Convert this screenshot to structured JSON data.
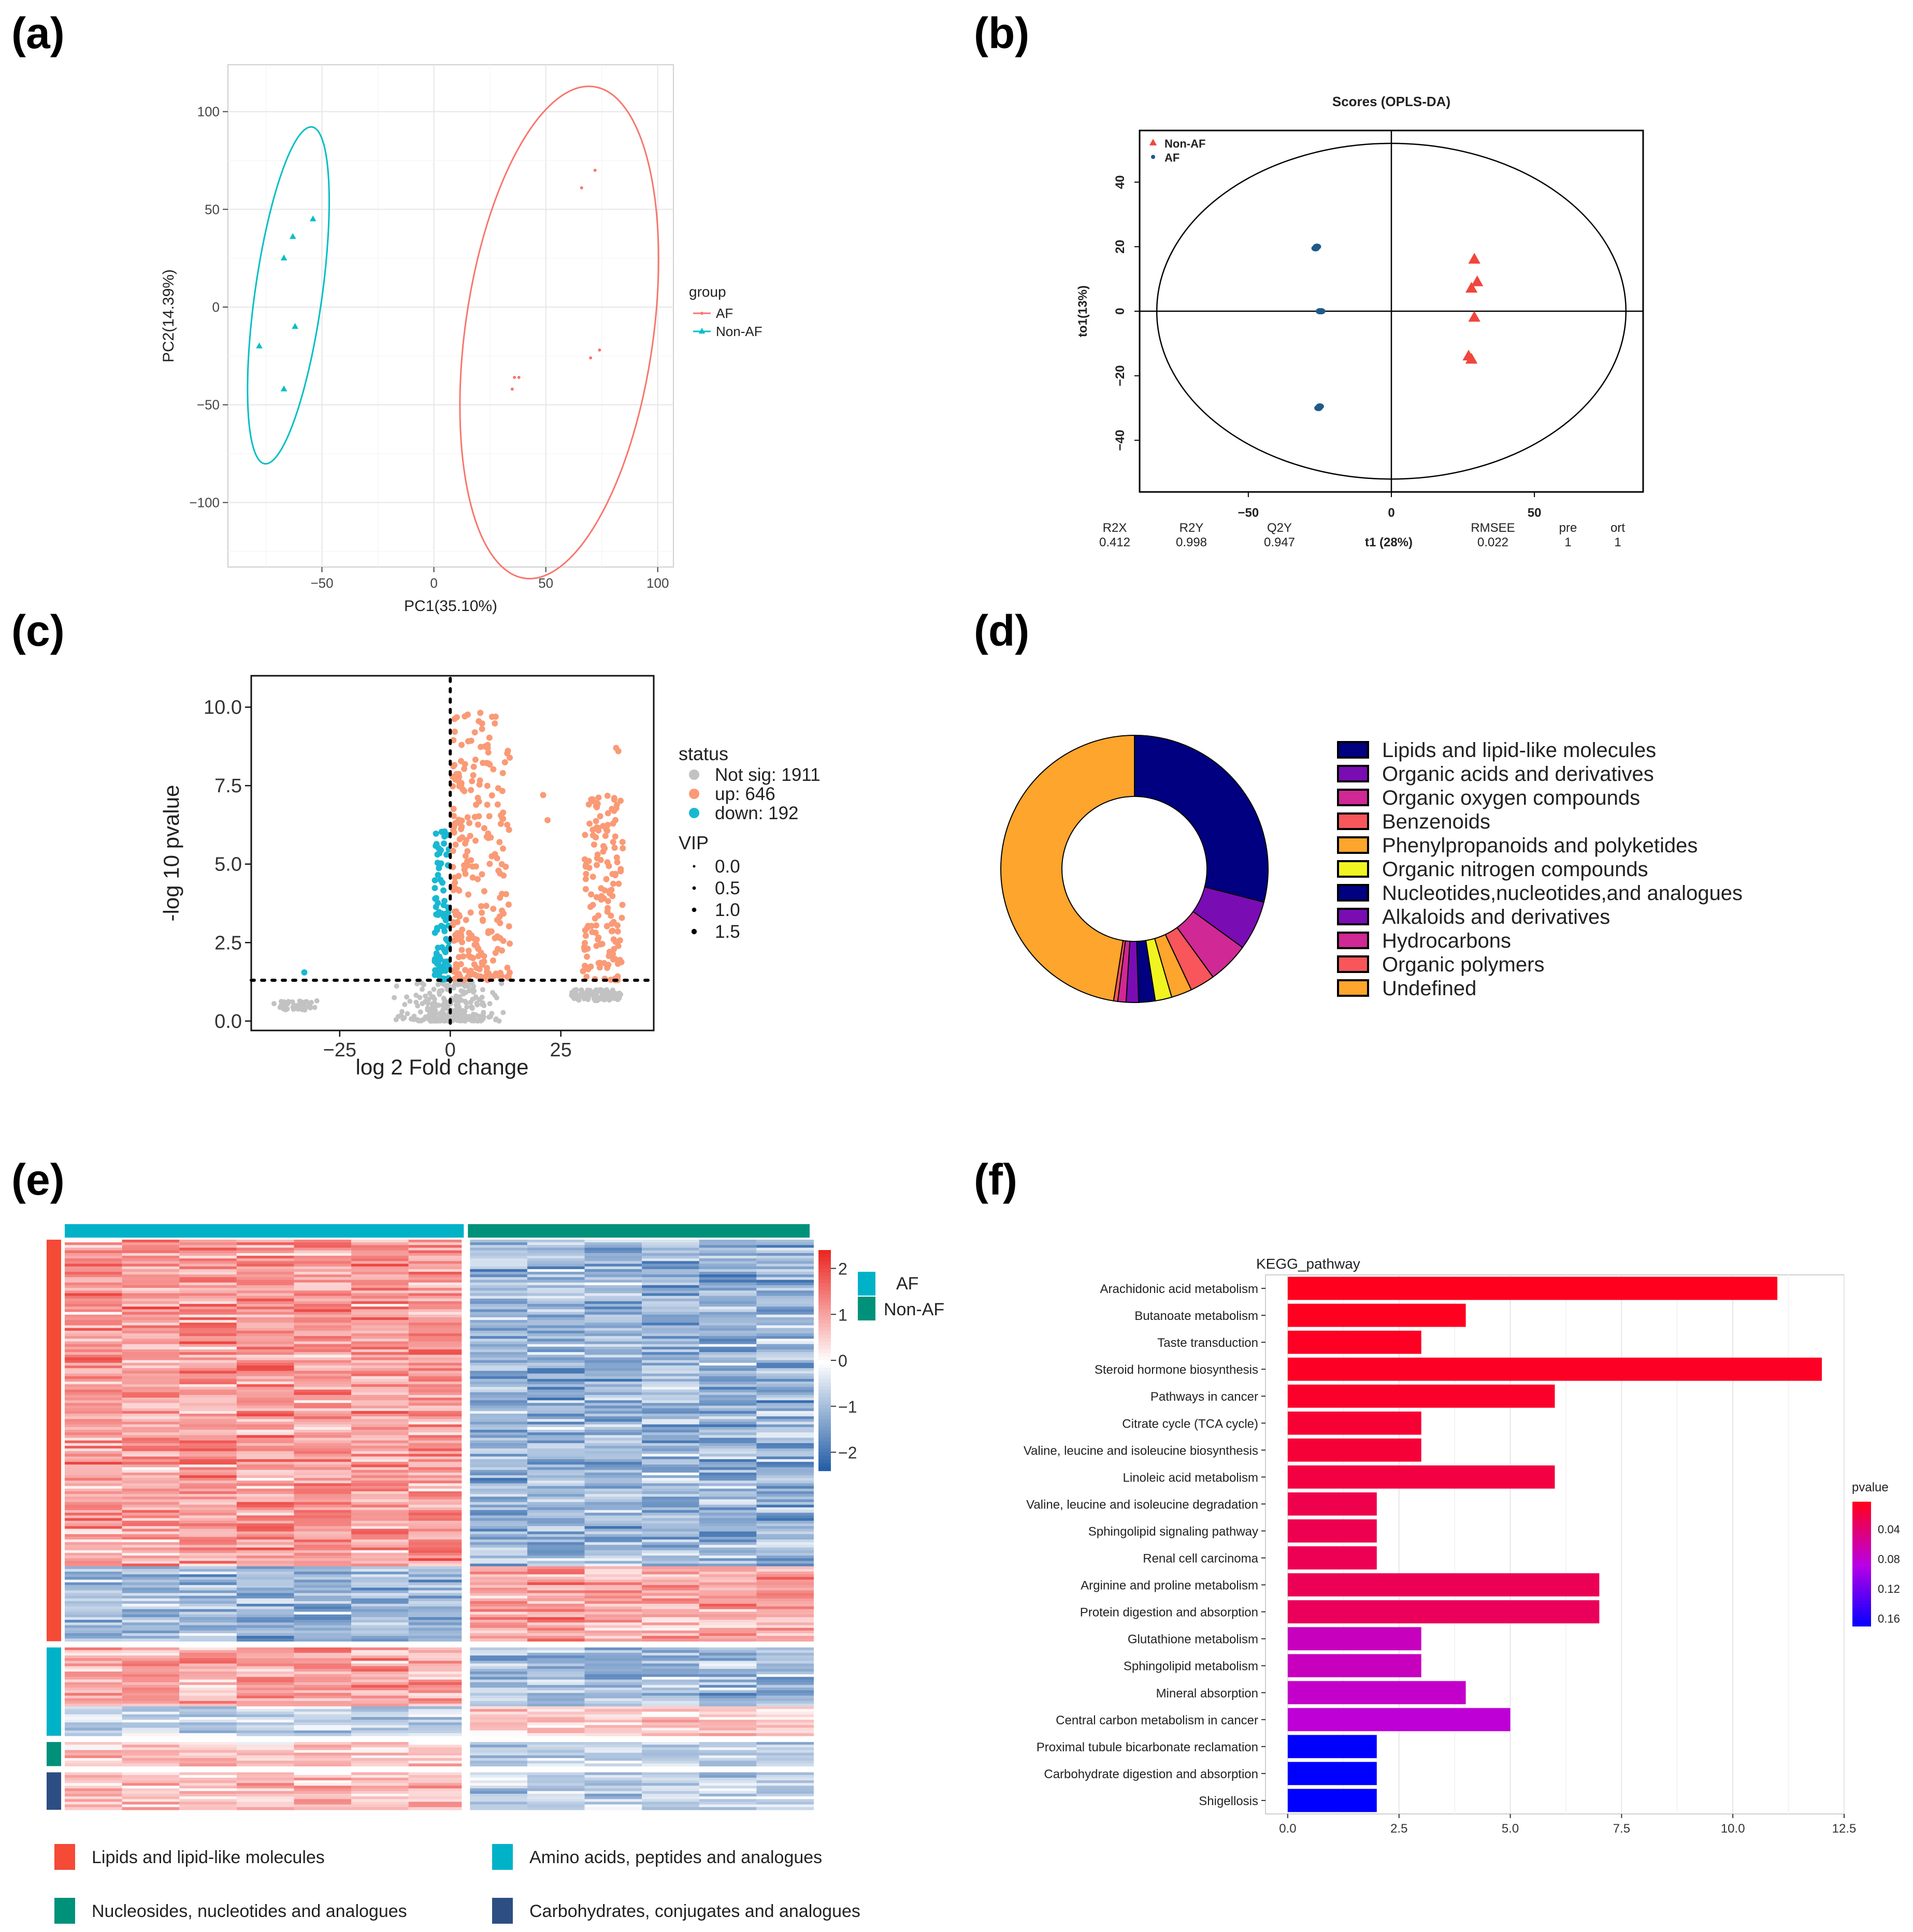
{
  "panel_labels": {
    "a": "(a)",
    "b": "(b)",
    "c": "(c)",
    "d": "(d)",
    "e": "(e)",
    "f": "(f)"
  },
  "colors": {
    "af": "#00bfc4",
    "non_af": "#f8766d",
    "opls_red": "#f0463c",
    "opls_blue": "#1f5a8a",
    "volcano_up": "#fa9a76",
    "volcano_down": "#19b8d2",
    "volcano_ns": "#c2c2c2"
  },
  "chart_data": [
    {
      "id": "a",
      "type": "scatter",
      "title": "",
      "xlabel": "PC1(35.10%)",
      "ylabel": "PC2(14.39%)",
      "xlim": [
        -92,
        107
      ],
      "ylim": [
        -133,
        124
      ],
      "xticks": [
        -50,
        0,
        50,
        100
      ],
      "yticks": [
        -100,
        -50,
        0,
        50,
        100
      ],
      "legend_title": "group",
      "series": [
        {
          "name": "AF",
          "marker": "dot",
          "color": "#f8766d",
          "points": [
            [
              66,
              61
            ],
            [
              72,
              70
            ],
            [
              36,
              -36
            ],
            [
              38,
              -36
            ],
            [
              35,
              -42
            ],
            [
              70,
              -26
            ],
            [
              74,
              -22
            ]
          ],
          "ellipse": {
            "cx": 56,
            "cy": -13,
            "rx": 42,
            "ry": 127,
            "angle_deg": 8
          }
        },
        {
          "name": "Non-AF",
          "marker": "triangle",
          "color": "#00bfc4",
          "points": [
            [
              -54,
              45
            ],
            [
              -63,
              36
            ],
            [
              -67,
              25
            ],
            [
              -62,
              -10
            ],
            [
              -78,
              -20
            ],
            [
              -67,
              -42
            ]
          ],
          "ellipse": {
            "cx": -65,
            "cy": 6,
            "rx": 15,
            "ry": 87,
            "angle_deg": 8
          }
        }
      ]
    },
    {
      "id": "b",
      "type": "scatter",
      "title": "Scores (OPLS-DA)",
      "xlabel": "t1 (28%)",
      "ylabel": "to1(13%)",
      "xlim": [
        -88,
        88
      ],
      "ylim": [
        -56,
        56
      ],
      "xticks": [
        -50,
        0,
        50
      ],
      "yticks": [
        -40,
        -20,
        0,
        20,
        40
      ],
      "series": [
        {
          "name": "Non-AF",
          "marker": "triangle",
          "color": "#f0463c",
          "points": [
            [
              29,
              16
            ],
            [
              30,
              9
            ],
            [
              28,
              7
            ],
            [
              29,
              -2
            ],
            [
              27,
              -14
            ],
            [
              28,
              -15
            ]
          ]
        },
        {
          "name": "AF",
          "marker": "dot",
          "color": "#1f5a8a",
          "points": [
            [
              -26,
              20
            ],
            [
              -26.5,
              19.5
            ],
            [
              -25,
              0
            ],
            [
              -24.5,
              0
            ],
            [
              -25.5,
              -30
            ],
            [
              -25,
              -29.5
            ]
          ]
        }
      ],
      "ellipse": {
        "cx": 0,
        "cy": 0,
        "rx": 82,
        "ry": 52
      },
      "stats": {
        "headers": [
          "R2X",
          "R2Y",
          "Q2Y",
          "RMSEE",
          "pre",
          "ort"
        ],
        "values": [
          "0.412",
          "0.998",
          "0.947",
          "0.022",
          "1",
          "1"
        ]
      }
    },
    {
      "id": "c",
      "type": "scatter",
      "title": "",
      "xlabel": "log 2 Fold change",
      "ylabel": "-log 10 pvalue",
      "xlim": [
        -45,
        46
      ],
      "ylim": [
        -0.3,
        11
      ],
      "xticks": [
        -25,
        0,
        25
      ],
      "yticks": [
        0.0,
        2.5,
        5.0,
        7.5,
        10.0
      ],
      "threshold_y": 1.3,
      "threshold_x": 0,
      "legend_title": "status",
      "series": [
        {
          "name": "Not sig",
          "count": 1911,
          "color": "#c2c2c2"
        },
        {
          "name": "up",
          "count": 646,
          "color": "#fa9a76"
        },
        {
          "name": "down",
          "count": 192,
          "color": "#19b8d2"
        }
      ],
      "size_legend_title": "VIP",
      "size_legend": [
        "0.0",
        "0.5",
        "1.0",
        "1.5"
      ]
    },
    {
      "id": "d",
      "type": "pie",
      "title": "",
      "donut": true,
      "categories": [
        "Lipids and lipid-like molecules",
        "Organic acids and derivatives",
        "Organic oxygen compounds",
        "Benzenoids",
        "Phenylpropanoids and polyketides",
        "Organic nitrogen compounds",
        "Nucleotides,nucleotides,and analogues",
        "Alkaloids and derivatives",
        "Hydrocarbons",
        "Organic polymers",
        "Undefined"
      ],
      "values": [
        29.0,
        6.0,
        5.0,
        3.0,
        2.5,
        2.0,
        2.0,
        1.5,
        1.0,
        0.5,
        47.5
      ],
      "colors": [
        "#000080",
        "#7a0cb4",
        "#d02894",
        "#f8565a",
        "#fda52c",
        "#f0f521",
        "#000080",
        "#7a0cb4",
        "#d02894",
        "#f8565a",
        "#fda52c"
      ]
    },
    {
      "id": "e",
      "type": "heatmap",
      "title": "",
      "columns": 13,
      "column_groups": [
        {
          "name": "AF",
          "count": 7,
          "color": "#00b2c8"
        },
        {
          "name": "Non-AF",
          "count": 6,
          "color": "#00917a"
        }
      ],
      "scale_ticks": [
        2,
        1,
        0,
        -1,
        -2
      ],
      "row_classes": [
        {
          "name": "Lipids and lipid-like molecules",
          "color": "#f44a36",
          "rows": 150
        },
        {
          "name": "Amino acids, peptides and analogues",
          "color": "#00b2c8",
          "rows": 33
        },
        {
          "name": "Nucleosides, nucleotides and analogues",
          "color": "#00917a",
          "rows": 9
        },
        {
          "name": "Carbohydrates, conjugates and analogues",
          "color": "#2d4e82",
          "rows": 14
        }
      ]
    },
    {
      "id": "f",
      "type": "bar",
      "orientation": "horizontal",
      "title": "KEGG_pathway",
      "xlim": [
        0,
        12.5
      ],
      "xticks": [
        0.0,
        2.5,
        5.0,
        7.5,
        10.0,
        12.5
      ],
      "categories": [
        "Arachidonic acid metabolism",
        "Butanoate metabolism",
        "Taste transduction",
        "Steroid hormone biosynthesis",
        "Pathways in cancer",
        "Citrate cycle (TCA cycle)",
        "Valine, leucine and isoleucine biosynthesis",
        "Linoleic acid metabolism",
        "Valine, leucine and isoleucine degradation",
        "Sphingolipid signaling pathway",
        "Renal cell carcinoma",
        "Arginine and proline metabolism",
        "Protein digestion and absorption",
        "Glutathione metabolism",
        "Sphingolipid metabolism",
        "Mineral absorption",
        "Central carbon metabolism in cancer",
        "Proximal tubule bicarbonate reclamation",
        "Carbohydrate digestion and absorption",
        "Shigellosis"
      ],
      "values": [
        11,
        4,
        3,
        12,
        6,
        3,
        3,
        6,
        2,
        2,
        2,
        7,
        7,
        3,
        3,
        4,
        5,
        2,
        2,
        2
      ],
      "pvalues": [
        0.003,
        0.004,
        0.005,
        0.006,
        0.008,
        0.012,
        0.014,
        0.018,
        0.022,
        0.024,
        0.025,
        0.026,
        0.028,
        0.07,
        0.07,
        0.075,
        0.08,
        0.17,
        0.17,
        0.17
      ],
      "colorbar_title": "pvalue",
      "colorbar_ticks": [
        "0.04",
        "0.08",
        "0.12",
        "0.16"
      ]
    }
  ]
}
